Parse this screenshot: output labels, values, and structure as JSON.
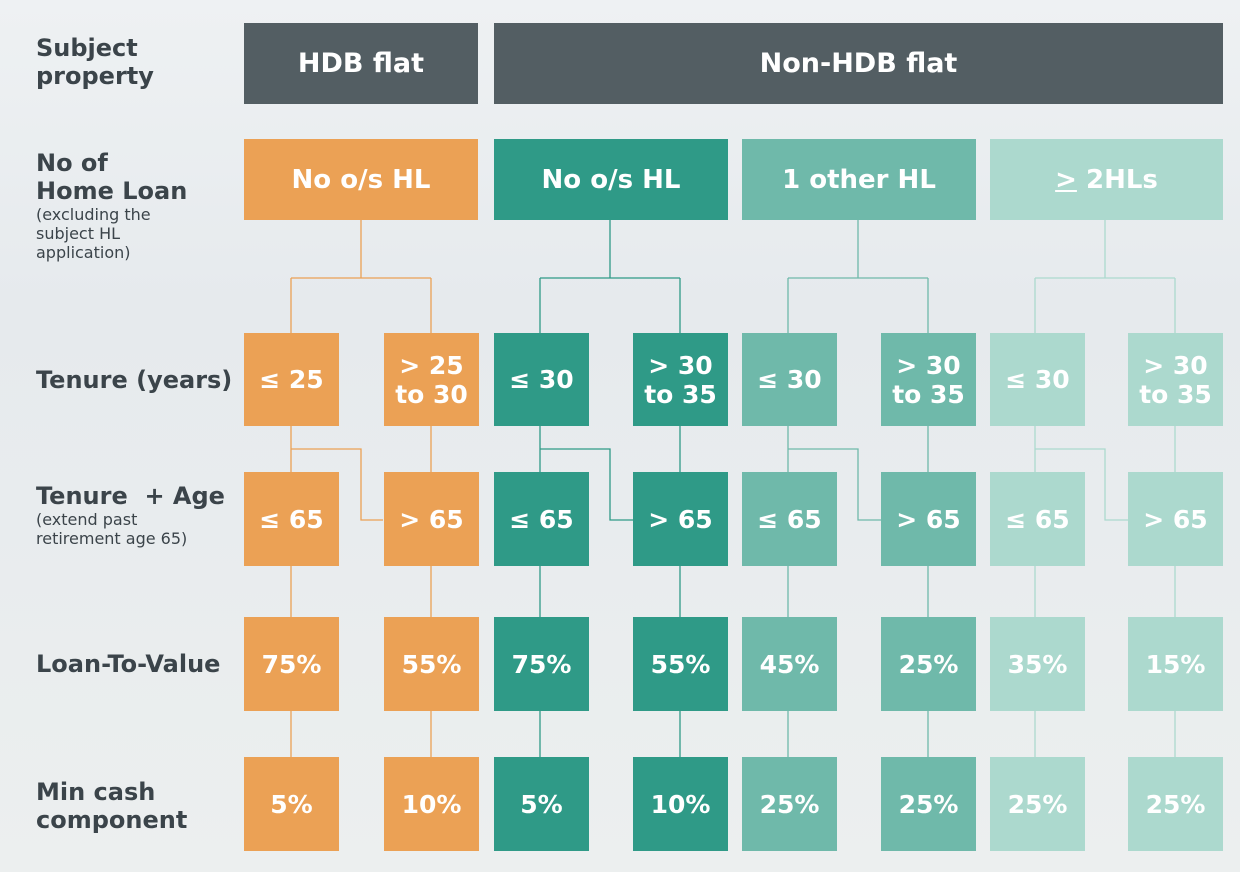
{
  "row_labels": {
    "subject_property": {
      "main": "Subject\nproperty"
    },
    "num_home_loan": {
      "main": "No of\nHome Loan",
      "sub": "(excluding the\nsubject HL\napplication)"
    },
    "tenure": {
      "main": "Tenure (years)"
    },
    "tenure_age": {
      "main": "Tenure  + Age",
      "sub": "(extend past\nretirement age 65)"
    },
    "ltv": {
      "main": "Loan-To-Value"
    },
    "min_cash": {
      "main": "Min cash\ncomponent"
    }
  },
  "headers": {
    "hdb": "HDB flat",
    "non_hdb": "Non-HDB flat"
  },
  "categories": {
    "hdb_no_hl": "No o/s HL",
    "nonhdb_no_hl": "No o/s HL",
    "nonhdb_one_hl": "1 other HL",
    "nonhdb_two_hl_symbol": ">",
    "nonhdb_two_hl_rest": " 2HLs"
  },
  "columns": [
    {
      "tenure": "≤ 25",
      "age": "≤ 65",
      "ltv": "75%",
      "cash": "5%"
    },
    {
      "tenure": "> 25\nto 30",
      "age": "> 65",
      "ltv": "55%",
      "cash": "10%"
    },
    {
      "tenure": "≤ 30",
      "age": "≤ 65",
      "ltv": "75%",
      "cash": "5%"
    },
    {
      "tenure": "> 30\nto 35",
      "age": "> 65",
      "ltv": "55%",
      "cash": "10%"
    },
    {
      "tenure": "≤ 30",
      "age": "≤ 65",
      "ltv": "45%",
      "cash": "25%"
    },
    {
      "tenure": "> 30\nto 35",
      "age": "> 65",
      "ltv": "25%",
      "cash": "25%"
    },
    {
      "tenure": "≤ 30",
      "age": "≤ 65",
      "ltv": "35%",
      "cash": "25%"
    },
    {
      "tenure": "> 30\nto 35",
      "age": "> 65",
      "ltv": "15%",
      "cash": "25%"
    }
  ],
  "colors": {
    "orange": "#eba155",
    "dark_teal": "#2f9a87",
    "mid_teal": "#6fb9aa",
    "light_teal": "#acd9ce",
    "slate": "#535e63"
  }
}
